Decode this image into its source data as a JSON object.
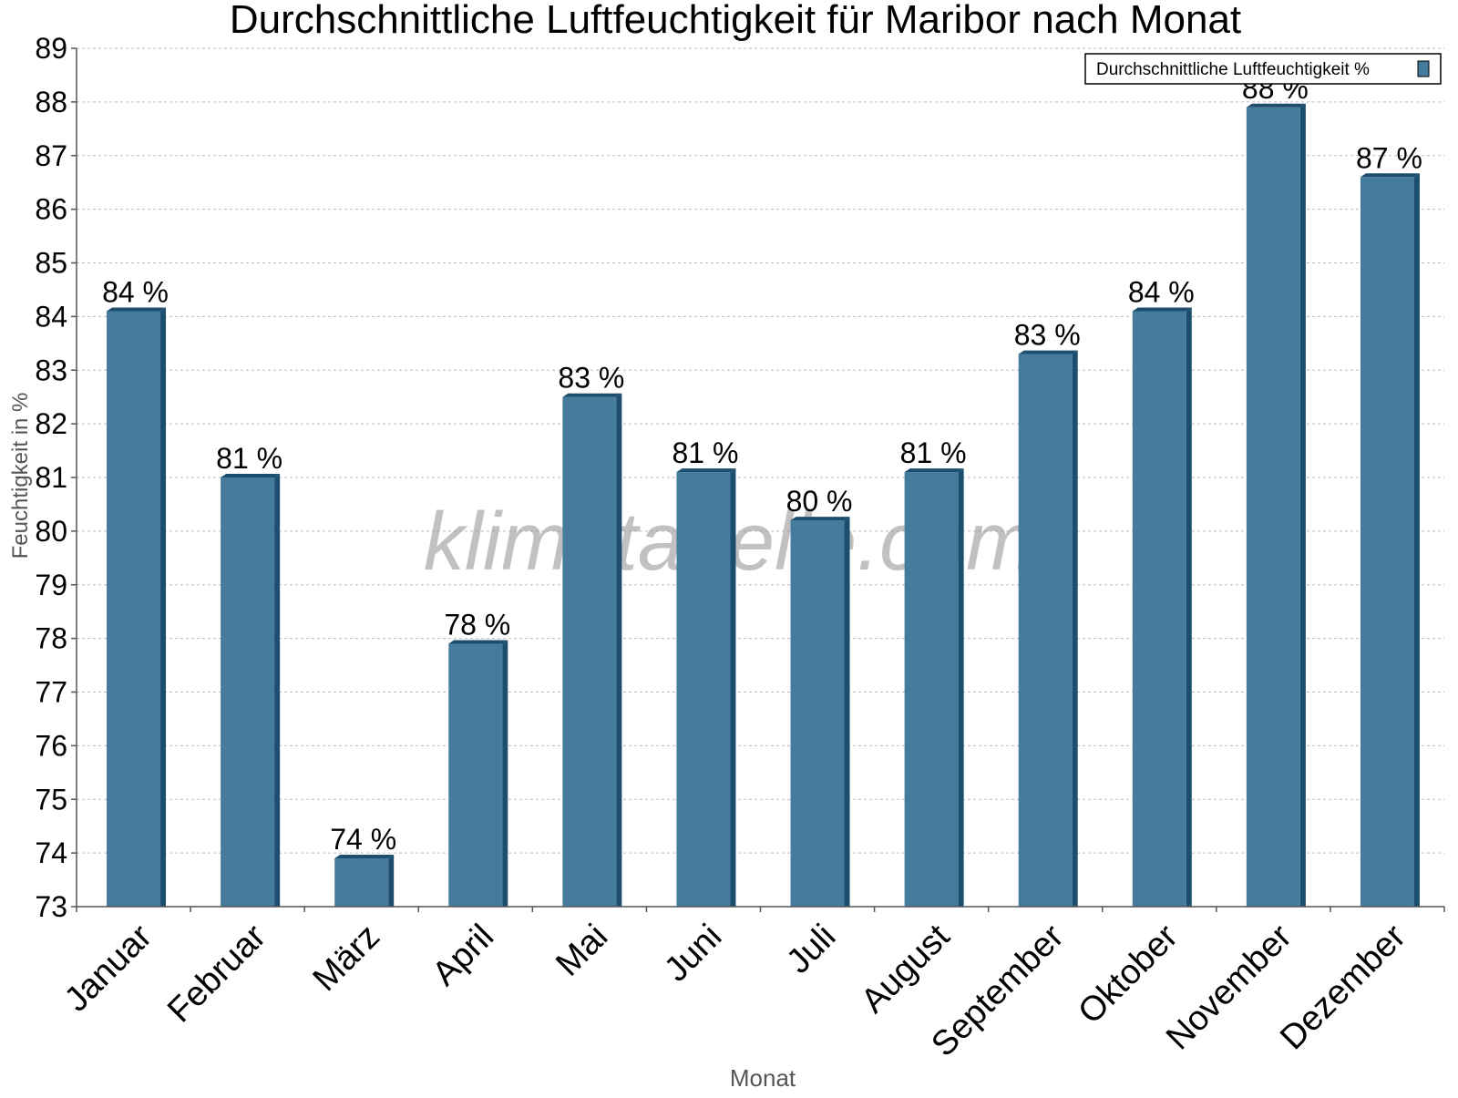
{
  "chart_data": {
    "type": "bar",
    "title": "Durchschnittliche Luftfeuchtigkeit für Maribor nach Monat",
    "xlabel": "Monat",
    "ylabel": "Feuchtigkeit in %",
    "ylim": [
      73,
      89
    ],
    "yticks": [
      73,
      74,
      75,
      76,
      77,
      78,
      79,
      80,
      81,
      82,
      83,
      84,
      85,
      86,
      87,
      88,
      89
    ],
    "grid": true,
    "legend_position": "top-right",
    "categories": [
      "Januar",
      "Februar",
      "März",
      "April",
      "Mai",
      "Juni",
      "Juli",
      "August",
      "September",
      "Oktober",
      "November",
      "Dezember"
    ],
    "series": [
      {
        "name": "Durchschnittliche Luftfeuchtigkeit %",
        "values": [
          84.1,
          81.0,
          73.9,
          77.9,
          82.5,
          81.1,
          80.2,
          81.1,
          83.3,
          84.1,
          87.9,
          86.6
        ],
        "data_labels": [
          "84 %",
          "81 %",
          "74 %",
          "78 %",
          "83 %",
          "81 %",
          "80 %",
          "81 %",
          "83 %",
          "84 %",
          "88 %",
          "87 %"
        ]
      }
    ],
    "watermark": "klimatabelle.com",
    "colors": {
      "bar": "#457b9d",
      "bar_side": "#1d4e6e",
      "grid": "#bbbbbb",
      "axis": "#555555"
    }
  }
}
